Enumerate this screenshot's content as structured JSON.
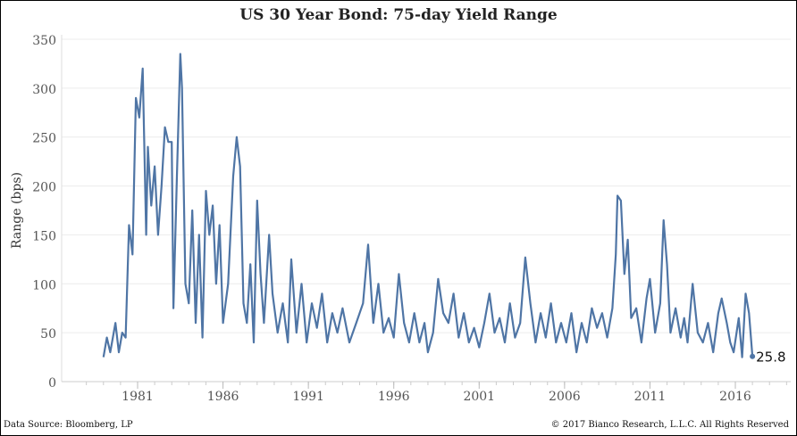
{
  "chart_data": {
    "type": "line",
    "title": "US 30 Year Bond: 75-day Yield Range",
    "xlabel": "",
    "ylabel": "Range (bps)",
    "xlim": [
      1977.5,
      2020
    ],
    "ylim": [
      0,
      350
    ],
    "xticks": [
      1981,
      1986,
      1991,
      1996,
      2001,
      2006,
      2011,
      2016
    ],
    "yticks": [
      0,
      50,
      100,
      150,
      200,
      250,
      300,
      350
    ],
    "grid": true,
    "color": "#4f75a5",
    "last_value_label": "25.8",
    "x": [
      1979.0,
      1979.2,
      1979.4,
      1979.7,
      1979.9,
      1980.1,
      1980.3,
      1980.5,
      1980.7,
      1980.9,
      1981.1,
      1981.3,
      1981.5,
      1981.6,
      1981.8,
      1982.0,
      1982.2,
      1982.4,
      1982.6,
      1982.8,
      1983.0,
      1983.1,
      1983.3,
      1983.5,
      1983.6,
      1983.8,
      1984.0,
      1984.2,
      1984.4,
      1984.6,
      1984.8,
      1985.0,
      1985.2,
      1985.4,
      1985.6,
      1985.8,
      1986.0,
      1986.3,
      1986.6,
      1986.8,
      1987.0,
      1987.2,
      1987.4,
      1987.6,
      1987.8,
      1988.0,
      1988.2,
      1988.4,
      1988.7,
      1988.9,
      1989.2,
      1989.5,
      1989.8,
      1990.0,
      1990.3,
      1990.6,
      1990.9,
      1991.2,
      1991.5,
      1991.8,
      1992.1,
      1992.4,
      1992.7,
      1993.0,
      1993.4,
      1993.8,
      1994.2,
      1994.5,
      1994.8,
      1995.1,
      1995.4,
      1995.7,
      1996.0,
      1996.3,
      1996.6,
      1996.9,
      1997.2,
      1997.5,
      1997.8,
      1998.0,
      1998.3,
      1998.6,
      1998.9,
      1999.2,
      1999.5,
      1999.8,
      2000.1,
      2000.4,
      2000.7,
      2001.0,
      2001.3,
      2001.6,
      2001.9,
      2002.2,
      2002.5,
      2002.8,
      2003.1,
      2003.4,
      2003.7,
      2004.0,
      2004.3,
      2004.6,
      2004.9,
      2005.2,
      2005.5,
      2005.8,
      2006.1,
      2006.4,
      2006.7,
      2007.0,
      2007.3,
      2007.6,
      2007.9,
      2008.2,
      2008.5,
      2008.8,
      2009.0,
      2009.1,
      2009.3,
      2009.5,
      2009.7,
      2009.9,
      2010.2,
      2010.5,
      2010.8,
      2011.0,
      2011.3,
      2011.6,
      2011.8,
      2012.0,
      2012.2,
      2012.5,
      2012.8,
      2013.0,
      2013.2,
      2013.5,
      2013.8,
      2014.1,
      2014.4,
      2014.7,
      2015.0,
      2015.2,
      2015.5,
      2015.7,
      2015.9,
      2016.2,
      2016.4,
      2016.6,
      2016.8,
      2017.0
    ],
    "y": [
      25,
      45,
      30,
      60,
      30,
      50,
      45,
      160,
      130,
      290,
      270,
      320,
      150,
      240,
      180,
      220,
      150,
      200,
      260,
      245,
      245,
      75,
      210,
      335,
      300,
      100,
      80,
      175,
      60,
      150,
      45,
      195,
      150,
      180,
      100,
      160,
      60,
      100,
      210,
      250,
      220,
      80,
      60,
      120,
      40,
      185,
      110,
      60,
      150,
      90,
      50,
      80,
      40,
      125,
      50,
      100,
      40,
      80,
      55,
      90,
      40,
      70,
      50,
      75,
      40,
      60,
      80,
      140,
      60,
      100,
      50,
      65,
      45,
      110,
      60,
      40,
      70,
      40,
      60,
      30,
      50,
      105,
      70,
      60,
      90,
      45,
      70,
      40,
      55,
      35,
      60,
      90,
      50,
      65,
      40,
      80,
      45,
      60,
      127,
      80,
      40,
      70,
      45,
      80,
      40,
      60,
      40,
      70,
      30,
      60,
      40,
      75,
      55,
      70,
      45,
      75,
      130,
      190,
      185,
      110,
      145,
      65,
      75,
      40,
      85,
      105,
      50,
      80,
      165,
      120,
      50,
      75,
      45,
      65,
      40,
      100,
      50,
      40,
      60,
      30,
      70,
      85,
      60,
      40,
      30,
      65,
      25,
      90,
      70,
      25.8
    ]
  },
  "footer": {
    "source": "Data Source: Bloomberg, LP",
    "copyright": "© 2017 Bianco Research, L.L.C. All Rights Reserved"
  }
}
